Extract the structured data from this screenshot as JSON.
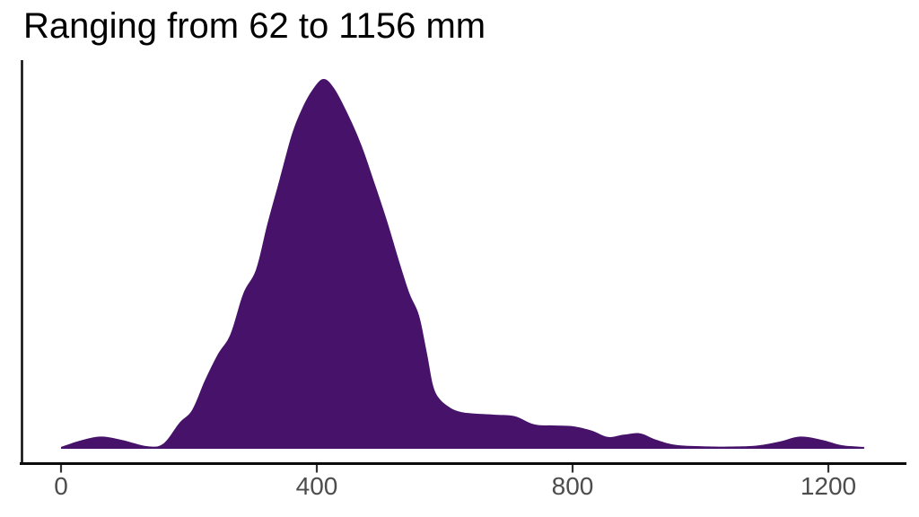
{
  "chart_data": {
    "type": "area",
    "subtype": "density",
    "title": "Ranging from 62 to 1156 mm",
    "xlabel": "",
    "ylabel": "",
    "unit": "mm",
    "x_ticks": [
      0,
      400,
      800,
      1200
    ],
    "x_tick_labels": [
      "0",
      "400",
      "800",
      "1200"
    ],
    "xlim": [
      -65,
      1322
    ],
    "ylim": [
      0,
      1.05
    ],
    "grid": false,
    "legend": false,
    "y_axis_labels_shown": false,
    "fill_color": "#471269",
    "axis_color": "#0B0B0B",
    "tick_mark_color": "#333333",
    "tick_label_color": "#4D4D4D",
    "title_color": "#000000",
    "series": [
      {
        "name": "density",
        "x": [
          0,
          30,
          62,
          95,
          135,
          160,
          185,
          205,
          225,
          245,
          265,
          285,
          305,
          323,
          342,
          361,
          377,
          393,
          410,
          427,
          450,
          470,
          490,
          510,
          530,
          545,
          560,
          572,
          582,
          592,
          606,
          620,
          640,
          680,
          710,
          740,
          770,
          800,
          830,
          855,
          880,
          905,
          930,
          960,
          1000,
          1050,
          1090,
          1125,
          1156,
          1190,
          1220,
          1245,
          1256
        ],
        "y": [
          0.005,
          0.022,
          0.033,
          0.024,
          0.007,
          0.014,
          0.07,
          0.105,
          0.185,
          0.255,
          0.31,
          0.42,
          0.485,
          0.61,
          0.73,
          0.85,
          0.92,
          0.97,
          1.0,
          0.975,
          0.9,
          0.82,
          0.72,
          0.615,
          0.5,
          0.42,
          0.36,
          0.26,
          0.17,
          0.135,
          0.114,
          0.102,
          0.096,
          0.092,
          0.088,
          0.066,
          0.063,
          0.061,
          0.049,
          0.032,
          0.038,
          0.042,
          0.025,
          0.011,
          0.007,
          0.006,
          0.009,
          0.02,
          0.033,
          0.024,
          0.01,
          0.006,
          0.005
        ]
      }
    ],
    "annotated_extremes": {
      "min": 62,
      "max": 1156
    }
  }
}
